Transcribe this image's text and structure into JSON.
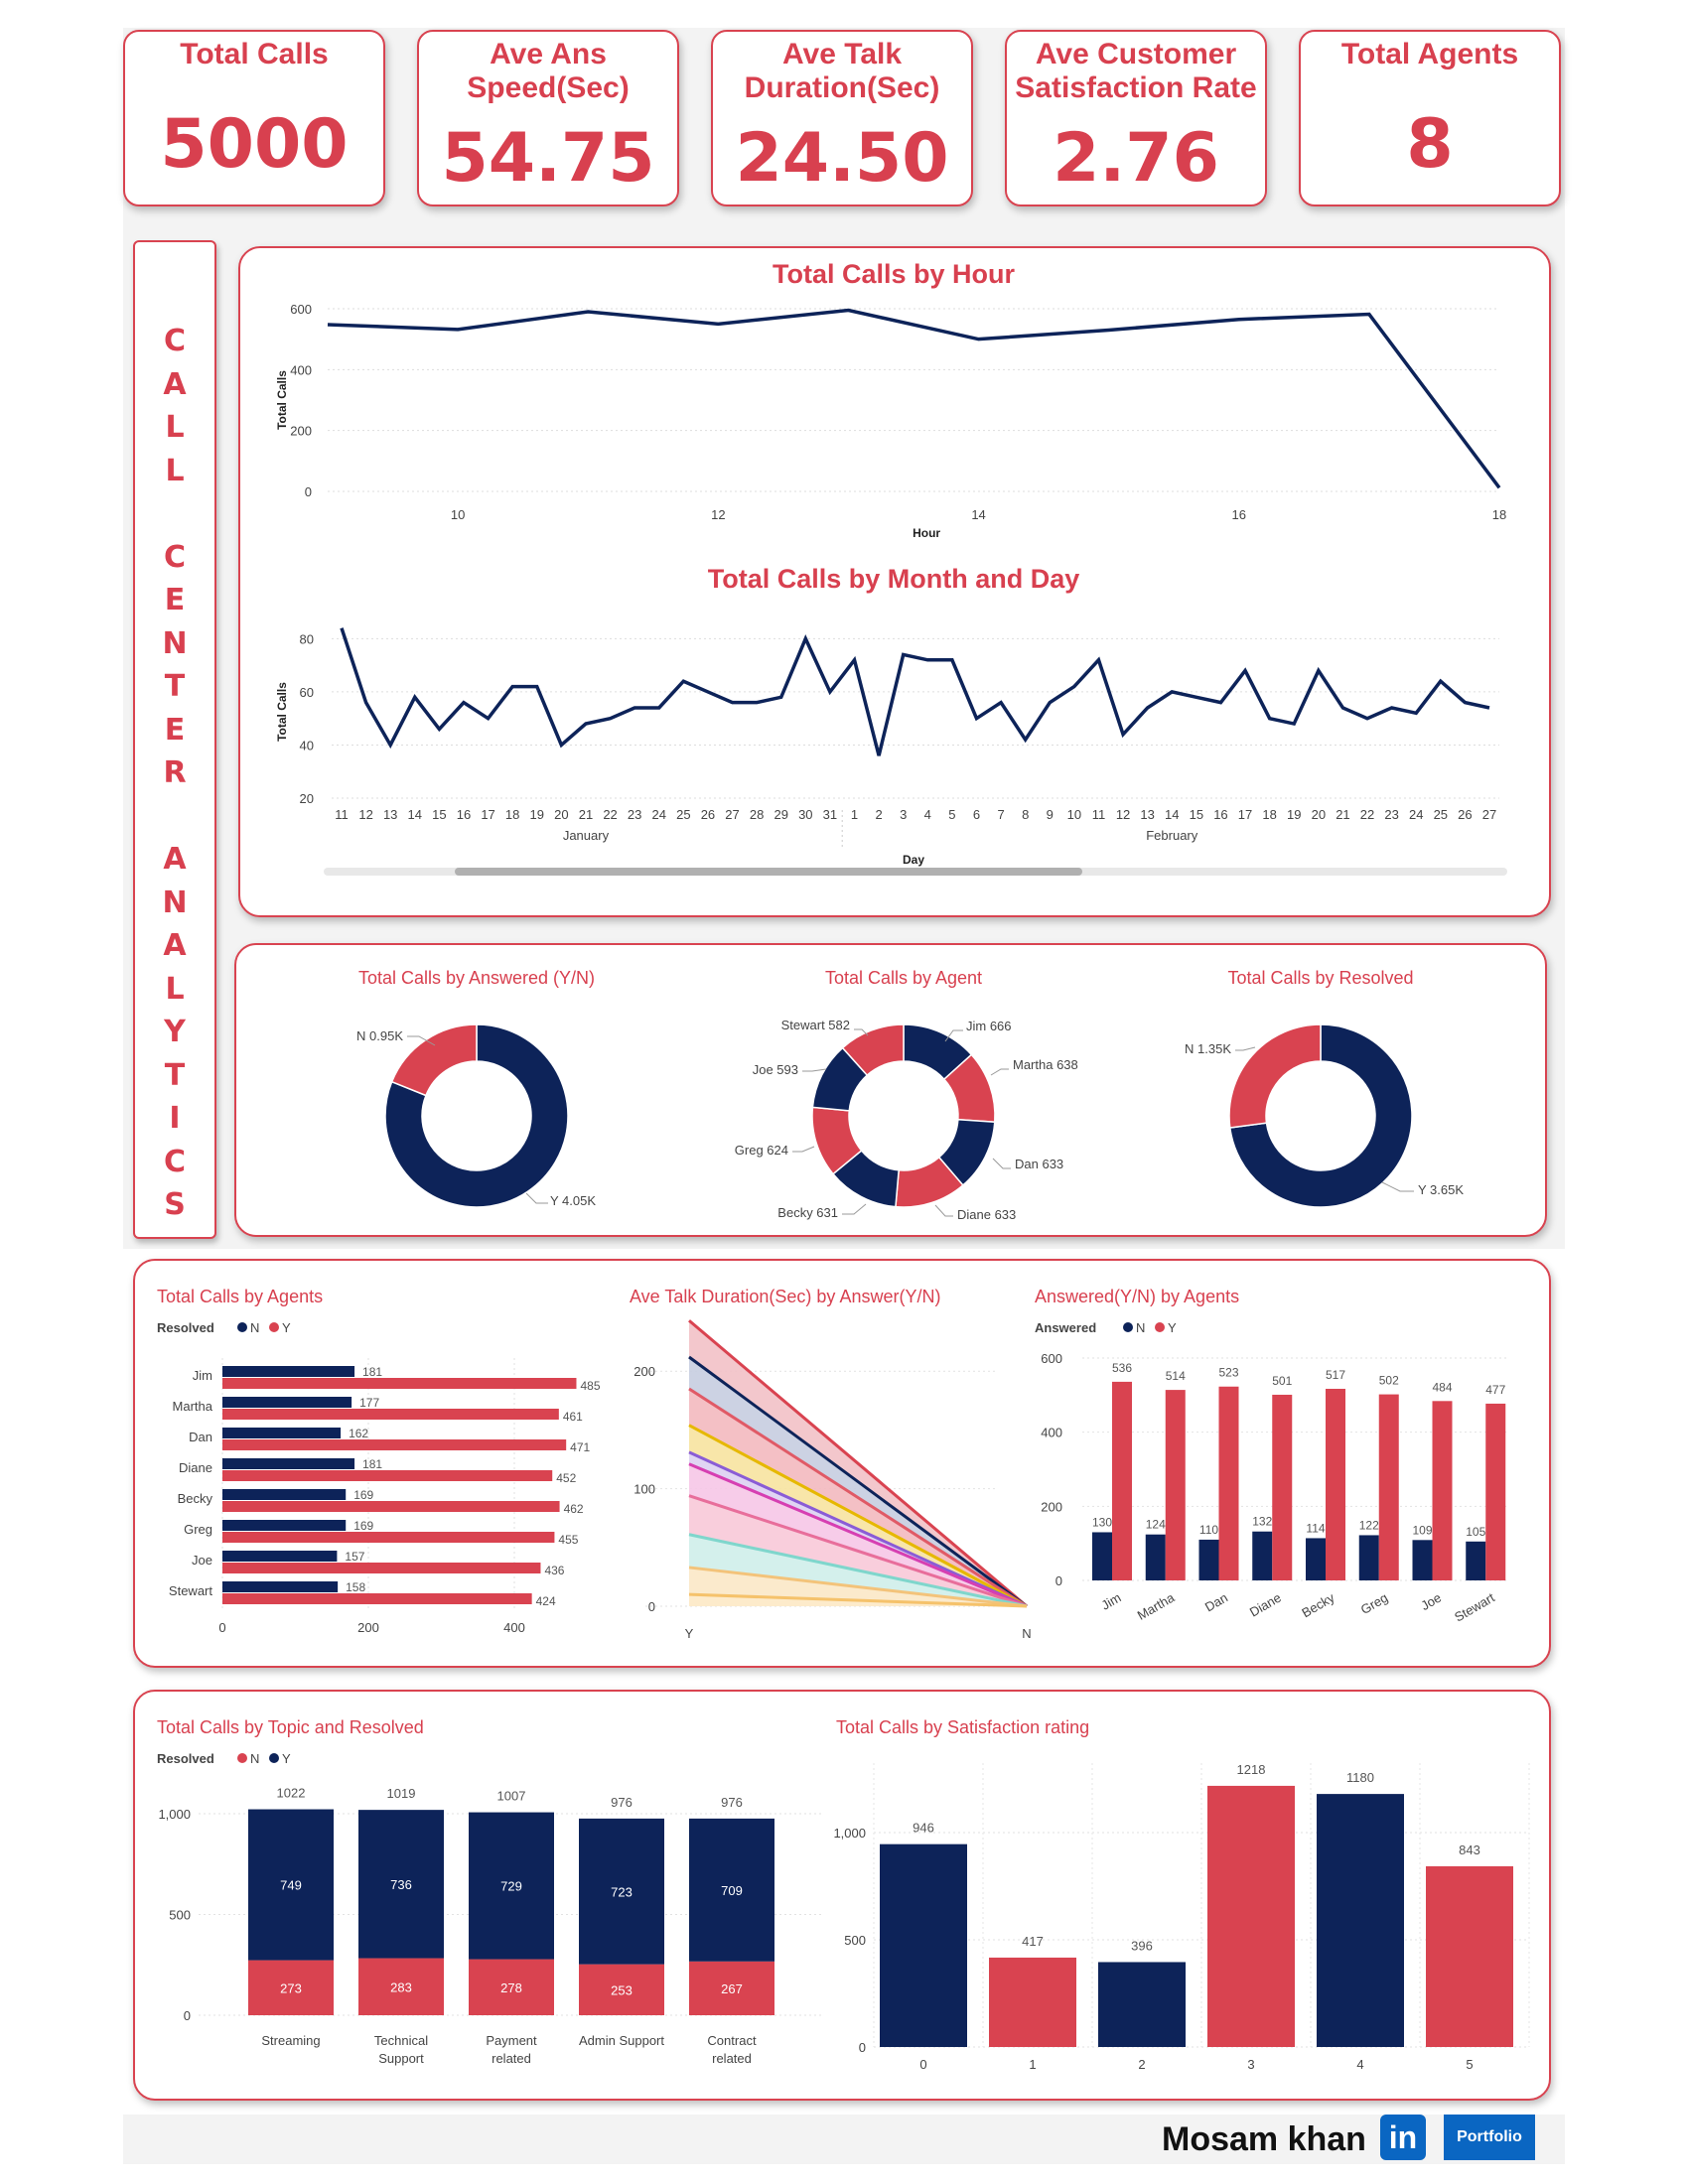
{
  "kpis": [
    {
      "title": "Total Calls",
      "value": "5000"
    },
    {
      "title": "Ave Ans\nSpeed(Sec)",
      "value": "54.75"
    },
    {
      "title": "Ave Talk\nDuration(Sec)",
      "value": "24.50"
    },
    {
      "title": "Ave Customer\nSatisfaction Rate",
      "value": "2.76"
    },
    {
      "title": "Total Agents",
      "value": "8"
    }
  ],
  "side_title": "C\nA\nL\nL\n\nC\nE\nN\nT\nE\nR\n\nA\nN\nA\nL\nY\nT\nI\nC\nS",
  "colors": {
    "accent": "#d8404f",
    "navy": "#0d2359",
    "red": "#d94350",
    "grid": "#cccccc"
  },
  "footer": {
    "name": "Mosam khan",
    "linkedin": "in",
    "portfolio": "Portfolio"
  },
  "chart_data": [
    {
      "id": "calls_by_hour",
      "type": "line",
      "title": "Total Calls by Hour",
      "xlabel": "Hour",
      "ylabel": "Total Calls",
      "x": [
        9,
        10,
        11,
        12,
        13,
        14,
        15,
        16,
        17,
        18
      ],
      "values": [
        548,
        532,
        590,
        550,
        595,
        500,
        530,
        565,
        582,
        12
      ],
      "xticks": [
        "10",
        "12",
        "14",
        "16",
        "18"
      ],
      "xtick_values": [
        10,
        12,
        14,
        16,
        18
      ],
      "yticks": [
        "0",
        "200",
        "400",
        "600"
      ],
      "ylim": [
        0,
        600
      ],
      "xlim": [
        9,
        18
      ]
    },
    {
      "id": "calls_by_month_day",
      "type": "line",
      "title": "Total Calls by Month and Day",
      "xlabel": "Day",
      "ylabel": "Total Calls",
      "categories": [
        "11",
        "12",
        "13",
        "14",
        "15",
        "16",
        "17",
        "18",
        "19",
        "20",
        "21",
        "22",
        "23",
        "24",
        "25",
        "26",
        "27",
        "28",
        "29",
        "30",
        "31",
        "1",
        "2",
        "3",
        "4",
        "5",
        "6",
        "7",
        "8",
        "9",
        "10",
        "11",
        "12",
        "13",
        "14",
        "15",
        "16",
        "17",
        "18",
        "19",
        "20",
        "21",
        "22",
        "23",
        "24",
        "25",
        "26",
        "27"
      ],
      "values": [
        84,
        56,
        40,
        58,
        46,
        56,
        50,
        62,
        62,
        40,
        48,
        50,
        54,
        54,
        64,
        60,
        56,
        56,
        58,
        80,
        60,
        72,
        36,
        74,
        72,
        72,
        50,
        56,
        42,
        56,
        62,
        72,
        44,
        54,
        60,
        58,
        56,
        68,
        50,
        48,
        68,
        54,
        50,
        54,
        52,
        64,
        56,
        54
      ],
      "months": [
        "January",
        "February"
      ],
      "yticks": [
        "20",
        "40",
        "60",
        "80"
      ],
      "ylim": [
        20,
        85
      ]
    },
    {
      "id": "answered_donut",
      "type": "pie",
      "title": "Total Calls by Answered (Y/N)",
      "slices": [
        {
          "label": "Y 4.05K",
          "value": 4054
        },
        {
          "label": "N 0.95K",
          "value": 946
        }
      ]
    },
    {
      "id": "agent_donut",
      "type": "pie",
      "title": "Total Calls by Agent",
      "slices": [
        {
          "label": "Jim 666",
          "value": 666
        },
        {
          "label": "Martha 638",
          "value": 638
        },
        {
          "label": "Dan 633",
          "value": 633
        },
        {
          "label": "Diane 633",
          "value": 633
        },
        {
          "label": "Becky 631",
          "value": 631
        },
        {
          "label": "Greg 624",
          "value": 624
        },
        {
          "label": "Joe 593",
          "value": 593
        },
        {
          "label": "Stewart 582",
          "value": 582
        }
      ]
    },
    {
      "id": "resolved_donut",
      "type": "pie",
      "title": "Total Calls by Resolved",
      "slices": [
        {
          "label": "Y 3.65K",
          "value": 3646
        },
        {
          "label": "N 1.35K",
          "value": 1354
        }
      ]
    },
    {
      "id": "calls_by_agents",
      "type": "bar",
      "orientation": "horizontal",
      "title": "Total Calls by Agents",
      "legend_title": "Resolved",
      "categories": [
        "Jim",
        "Martha",
        "Dan",
        "Diane",
        "Becky",
        "Greg",
        "Joe",
        "Stewart"
      ],
      "series": [
        {
          "name": "N",
          "values": [
            181,
            177,
            162,
            181,
            169,
            169,
            157,
            158
          ]
        },
        {
          "name": "Y",
          "values": [
            485,
            461,
            471,
            452,
            462,
            455,
            436,
            424
          ]
        }
      ],
      "xticks": [
        "0",
        "200",
        "400"
      ],
      "xlim": [
        0,
        500
      ]
    },
    {
      "id": "talk_duration_by_answer",
      "type": "area",
      "title": "Ave Talk Duration(Sec) by Answer(Y/N)",
      "categories": [
        "Y",
        "N"
      ],
      "series_y_values": [
        243,
        212,
        185,
        154,
        131,
        121,
        94,
        61,
        33,
        10
      ],
      "yticks": [
        "0",
        "100",
        "200"
      ],
      "ylim": [
        0,
        250
      ]
    },
    {
      "id": "answered_by_agents",
      "type": "bar",
      "title": "Answered(Y/N) by Agents",
      "legend_title": "Answered",
      "categories": [
        "Jim",
        "Martha",
        "Dan",
        "Diane",
        "Becky",
        "Greg",
        "Joe",
        "Stewart"
      ],
      "series": [
        {
          "name": "N",
          "values": [
            130,
            124,
            110,
            132,
            114,
            122,
            109,
            105
          ]
        },
        {
          "name": "Y",
          "values": [
            536,
            514,
            523,
            501,
            517,
            502,
            484,
            477
          ]
        }
      ],
      "yticks": [
        "0",
        "200",
        "400",
        "600"
      ],
      "ylim": [
        0,
        600
      ]
    },
    {
      "id": "topic_resolved",
      "type": "bar",
      "stacked": true,
      "title": "Total Calls by Topic and Resolved",
      "legend_title": "Resolved",
      "categories": [
        "Streaming",
        "Technical\nSupport",
        "Payment\nrelated",
        "Admin Support",
        "Contract\nrelated"
      ],
      "series": [
        {
          "name": "N",
          "values": [
            273,
            283,
            278,
            253,
            267
          ]
        },
        {
          "name": "Y",
          "values": [
            749,
            736,
            729,
            723,
            709
          ]
        }
      ],
      "totals": [
        1022,
        1019,
        1007,
        976,
        976
      ],
      "yticks": [
        "0",
        "500",
        "1,000"
      ],
      "ylim": [
        0,
        1100
      ]
    },
    {
      "id": "satisfaction",
      "type": "bar",
      "title": "Total Calls by Satisfaction rating",
      "categories": [
        "0",
        "1",
        "2",
        "3",
        "4",
        "5"
      ],
      "values": [
        946,
        417,
        396,
        1218,
        1180,
        843
      ],
      "yticks": [
        "0",
        "500",
        "1,000"
      ],
      "ylim": [
        0,
        1300
      ]
    }
  ]
}
